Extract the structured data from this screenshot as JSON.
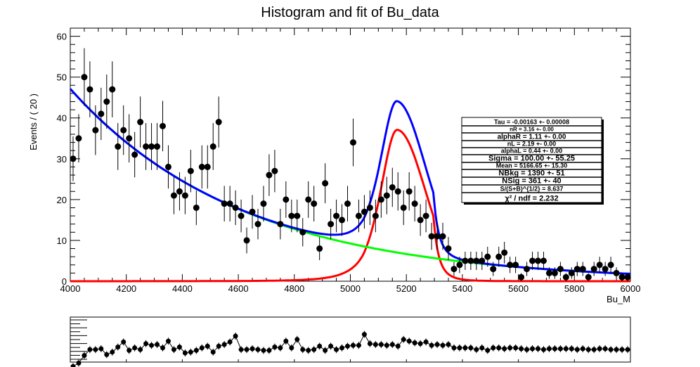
{
  "chart_data": [
    {
      "type": "scatter",
      "title": "Histogram and fit of Bu_data",
      "xlabel": "Bu_M",
      "ylabel": "Events / ( 20 )",
      "xlim": [
        4000,
        6000
      ],
      "ylim": [
        0,
        62
      ],
      "x_ticks": [
        4000,
        4200,
        4400,
        4600,
        4800,
        5000,
        5200,
        5400,
        5600,
        5800,
        6000
      ],
      "y_ticks": [
        0,
        10,
        20,
        30,
        40,
        50,
        60
      ],
      "grid": false,
      "series": [
        {
          "kind": "errorbar-points",
          "color": "#000000",
          "x": [
            4010,
            4030,
            4050,
            4070,
            4090,
            4110,
            4130,
            4150,
            4170,
            4190,
            4210,
            4230,
            4250,
            4270,
            4290,
            4310,
            4330,
            4350,
            4370,
            4390,
            4410,
            4430,
            4450,
            4470,
            4490,
            4510,
            4530,
            4550,
            4570,
            4590,
            4610,
            4630,
            4650,
            4670,
            4690,
            4710,
            4730,
            4750,
            4770,
            4790,
            4810,
            4830,
            4850,
            4870,
            4890,
            4910,
            4930,
            4950,
            4970,
            4990,
            5010,
            5030,
            5050,
            5070,
            5090,
            5110,
            5130,
            5150,
            5170,
            5190,
            5210,
            5230,
            5250,
            5270,
            5290,
            5310,
            5330,
            5350,
            5370,
            5390,
            5410,
            5430,
            5450,
            5470,
            5490,
            5510,
            5530,
            5550,
            5570,
            5590,
            5610,
            5630,
            5650,
            5670,
            5690,
            5710,
            5730,
            5750,
            5770,
            5790,
            5810,
            5830,
            5850,
            5870,
            5890,
            5910,
            5930,
            5950,
            5970,
            5990
          ],
          "y": [
            30,
            35,
            50,
            47,
            37,
            41,
            44,
            47,
            33,
            37,
            35,
            31,
            39,
            33,
            33,
            33,
            38,
            28,
            21,
            22,
            21,
            27,
            18,
            28,
            28,
            33,
            39,
            19,
            19,
            18,
            16,
            10,
            17,
            14,
            19,
            26,
            27,
            14,
            20,
            16,
            16,
            12,
            20,
            19,
            8,
            24,
            14,
            16,
            15,
            19,
            34,
            16,
            17,
            18,
            16,
            20,
            21,
            23,
            22,
            18,
            22,
            19,
            15,
            16,
            11,
            11,
            11,
            8,
            3,
            4,
            5,
            5,
            5,
            5,
            6,
            3,
            6,
            7,
            4,
            4,
            1,
            3,
            5,
            5,
            5,
            2,
            2,
            3,
            1,
            2,
            3,
            3,
            1,
            3,
            4,
            3,
            4,
            2,
            1,
            1
          ]
        },
        {
          "kind": "fit-curve",
          "color": "#0000ff",
          "component": "total"
        },
        {
          "kind": "fit-curve",
          "color": "#00ff00",
          "component": "background"
        },
        {
          "kind": "fit-curve",
          "color": "#ff0000",
          "component": "signal"
        }
      ],
      "fit_params": {
        "tau": -0.00163,
        "nBkg": 1390,
        "nSig": 361,
        "mean": 5166.65,
        "sigma": 100.0
      },
      "stats_box": [
        "Tau = -0.00163 +- 0.00008",
        "nR = 3.16 +- 0.00",
        "alphaR = 1.11 +- 0.00",
        "nL = 2.19 +- 0.00",
        "alphaL = 0.44 +- 0.00",
        "Sigma = 100.00 +- 55.25",
        "Mean = 5166.65 +- 15.30",
        "NBkg = 1390 +- 51",
        "NSig = 361 +- 40",
        "S/(S+B)^{1/2} = 8.637",
        "χ² / ndf = 2.232"
      ]
    },
    {
      "type": "scatter",
      "role": "residual-panel",
      "xlim": [
        4000,
        6000
      ],
      "x": [
        4010,
        4030,
        4050,
        4070,
        4090,
        4110,
        4130,
        4150,
        4170,
        4190,
        4210,
        4230,
        4250,
        4270,
        4290,
        4310,
        4330,
        4350,
        4370,
        4390,
        4410,
        4430,
        4450,
        4470,
        4490,
        4510,
        4530,
        4550,
        4570,
        4590,
        4610,
        4630,
        4650,
        4670,
        4690,
        4710,
        4730,
        4750,
        4770,
        4790,
        4810,
        4830,
        4850,
        4870,
        4890,
        4910,
        4930,
        4950,
        4970,
        4990,
        5010,
        5030,
        5050,
        5070,
        5090,
        5110,
        5130,
        5150,
        5170,
        5190,
        5210,
        5230,
        5250,
        5270,
        5290,
        5310,
        5330,
        5350,
        5370,
        5390,
        5410,
        5430,
        5450,
        5470,
        5490,
        5510,
        5530,
        5550,
        5570,
        5590,
        5610,
        5630,
        5650,
        5670,
        5690,
        5710,
        5730,
        5750,
        5770,
        5790,
        5810,
        5830,
        5850,
        5870,
        5890,
        5910,
        5930,
        5950,
        5970,
        5990
      ],
      "y": [
        -2.6,
        -2.2,
        -1.3,
        -0.6,
        -0.6,
        -0.5,
        -1.2,
        -0.9,
        -0.3,
        0.3,
        -0.7,
        -0.4,
        -0.6,
        0.1,
        -0.1,
        0.0,
        -0.4,
        0.4,
        -0.6,
        -0.3,
        -1.0,
        -0.9,
        -0.7,
        -0.4,
        -0.2,
        -0.9,
        -0.2,
        0.0,
        0.3,
        1.0,
        -0.6,
        -0.6,
        -0.5,
        -0.6,
        -0.7,
        -0.7,
        -0.3,
        -0.4,
        0.4,
        -0.4,
        0.6,
        -0.6,
        -0.7,
        -0.6,
        -0.2,
        -0.7,
        -0.2,
        -0.6,
        -0.4,
        -0.2,
        -0.1,
        -0.1,
        1.2,
        0.1,
        0.0,
        0.0,
        -0.1,
        0.0,
        -0.2,
        0.6,
        0.4,
        0.2,
        0.1,
        0.3,
        -0.1,
        0.0,
        -0.1,
        0.0,
        -0.4,
        -0.4,
        -0.4,
        -0.4,
        -0.6,
        -0.4,
        -0.7,
        -0.4,
        -0.4,
        -0.5,
        -0.4,
        -0.4,
        -0.5,
        -0.6,
        -0.5,
        -0.5,
        -0.6,
        -0.5,
        -0.5,
        -0.5,
        -0.5,
        -0.5,
        -0.6,
        -0.5,
        -0.6,
        -0.6,
        -0.5,
        -0.5,
        -0.6,
        -0.6,
        -0.6,
        -0.6
      ]
    }
  ]
}
